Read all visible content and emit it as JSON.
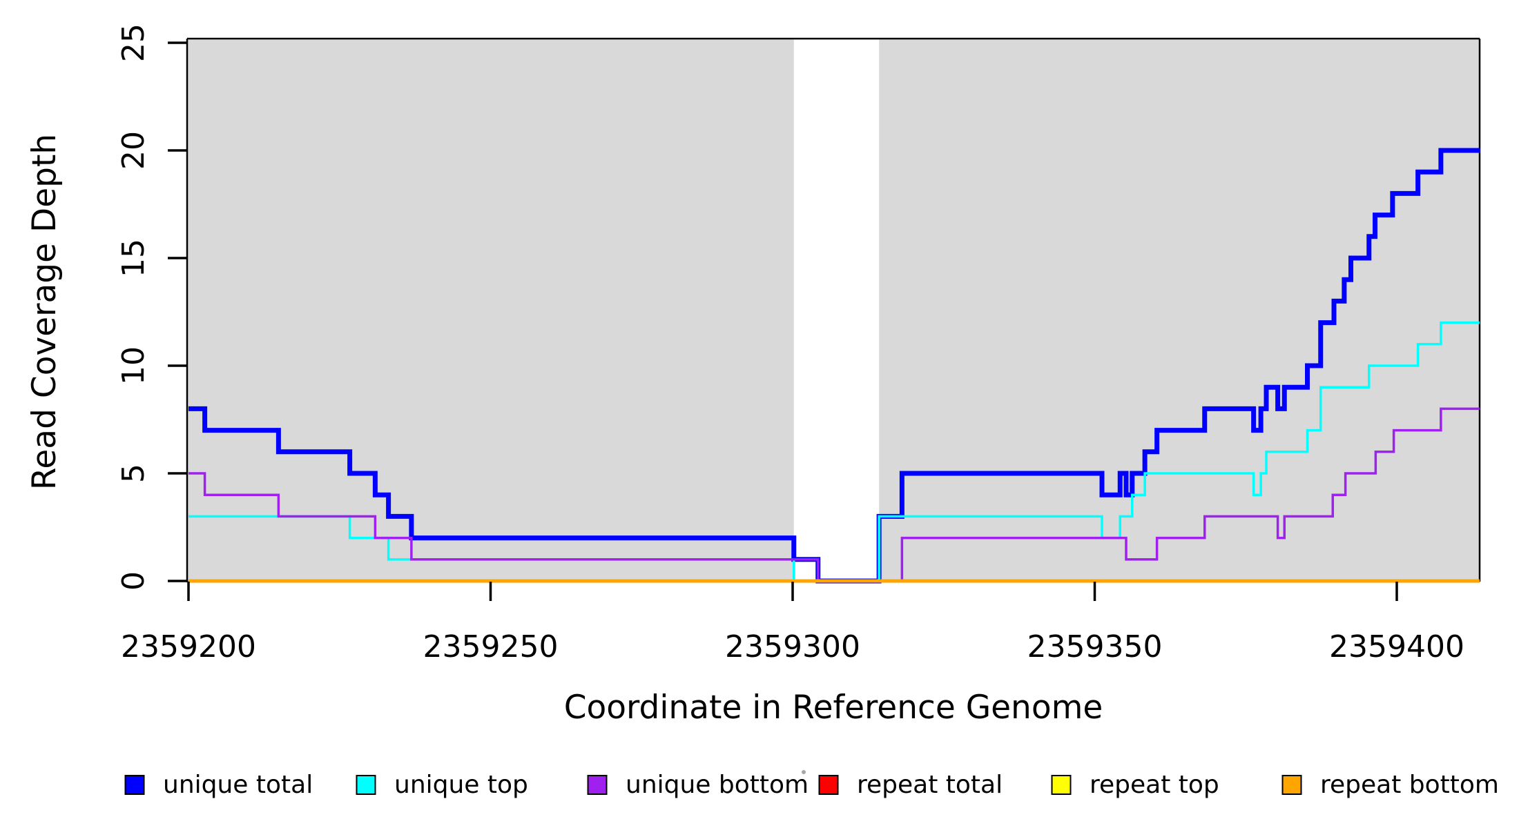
{
  "figure": {
    "background": "#FFFFFF",
    "panel_band_color": "#D9D9D9",
    "axis_color": "#000000"
  },
  "chart_data": {
    "type": "line",
    "subtype": "step-after-coverage",
    "title": "",
    "xlabel": "Coordinate in Reference Genome",
    "ylabel": "Read Coverage Depth",
    "xlim": [
      2359199.8,
      2359413.7
    ],
    "ylim": [
      0,
      25
    ],
    "grid": false,
    "legend_position": "bottom",
    "x_ticks": [
      2359200,
      2359250,
      2359300,
      2359350,
      2359400
    ],
    "x_tick_labels": [
      "2359200",
      "2359250",
      "2359300",
      "2359350",
      "2359400"
    ],
    "y_ticks": [
      0,
      5,
      10,
      15,
      20,
      25
    ],
    "y_tick_labels": [
      "0",
      "5",
      "10",
      "15",
      "20",
      "25"
    ],
    "shaded_regions": [
      {
        "name": "unique-mapping-block-left",
        "x0": 2359199.8,
        "x1": 2359300.2,
        "color": "#D9D9D9"
      },
      {
        "name": "unique-mapping-block-right",
        "x0": 2359314.3,
        "x1": 2359413.7,
        "color": "#D9D9D9"
      }
    ],
    "series_end_x": 2359413.7,
    "series": [
      {
        "name": "unique total",
        "color": "#0000FF",
        "width": 7,
        "steps": [
          [
            2359200,
            8
          ],
          [
            2359202.7,
            7
          ],
          [
            2359214.9,
            6
          ],
          [
            2359226.7,
            5
          ],
          [
            2359230.9,
            4
          ],
          [
            2359233.1,
            3
          ],
          [
            2359236.9,
            2
          ],
          [
            2359300.2,
            1
          ],
          [
            2359304.2,
            0
          ],
          [
            2359314.3,
            3
          ],
          [
            2359318.1,
            5
          ],
          [
            2359351.2,
            4
          ],
          [
            2359354.2,
            5
          ],
          [
            2359355.2,
            4
          ],
          [
            2359356.2,
            5
          ],
          [
            2359358.3,
            6
          ],
          [
            2359360.3,
            7
          ],
          [
            2359368.2,
            8
          ],
          [
            2359376.3,
            7
          ],
          [
            2359377.5,
            8
          ],
          [
            2359378.4,
            9
          ],
          [
            2359380.3,
            8
          ],
          [
            2359381.4,
            9
          ],
          [
            2359385.2,
            10
          ],
          [
            2359387.4,
            12
          ],
          [
            2359389.6,
            13
          ],
          [
            2359391.3,
            14
          ],
          [
            2359392.4,
            15
          ],
          [
            2359395.4,
            16
          ],
          [
            2359396.4,
            17
          ],
          [
            2359399.3,
            18
          ],
          [
            2359403.5,
            19
          ],
          [
            2359407.3,
            20
          ]
        ]
      },
      {
        "name": "unique top",
        "color": "#00FFFF",
        "width": 3.5,
        "steps": [
          [
            2359200,
            3
          ],
          [
            2359226.7,
            2
          ],
          [
            2359233.1,
            1
          ],
          [
            2359300.2,
            0
          ],
          [
            2359314.3,
            3
          ],
          [
            2359351.2,
            2
          ],
          [
            2359354.2,
            3
          ],
          [
            2359356.2,
            4
          ],
          [
            2359358.3,
            5
          ],
          [
            2359376.3,
            4
          ],
          [
            2359377.5,
            5
          ],
          [
            2359378.4,
            6
          ],
          [
            2359385.2,
            7
          ],
          [
            2359387.4,
            9
          ],
          [
            2359395.4,
            10
          ],
          [
            2359403.5,
            11
          ],
          [
            2359407.3,
            12
          ]
        ]
      },
      {
        "name": "unique bottom",
        "color": "#A020F0",
        "width": 3.5,
        "steps": [
          [
            2359200,
            5
          ],
          [
            2359202.7,
            4
          ],
          [
            2359214.9,
            3
          ],
          [
            2359230.9,
            2
          ],
          [
            2359236.9,
            1
          ],
          [
            2359304.2,
            0
          ],
          [
            2359318.1,
            2
          ],
          [
            2359355.2,
            1
          ],
          [
            2359360.3,
            2
          ],
          [
            2359368.2,
            3
          ],
          [
            2359380.3,
            2
          ],
          [
            2359381.4,
            3
          ],
          [
            2359389.4,
            4
          ],
          [
            2359391.5,
            5
          ],
          [
            2359396.5,
            6
          ],
          [
            2359399.5,
            7
          ],
          [
            2359407.3,
            8
          ]
        ]
      },
      {
        "name": "repeat total",
        "color": "#FF0000",
        "width": 3.5,
        "steps": [
          [
            2359200,
            0
          ]
        ]
      },
      {
        "name": "repeat top",
        "color": "#FFFF00",
        "width": 3.5,
        "steps": [
          [
            2359200,
            0
          ]
        ]
      },
      {
        "name": "repeat bottom",
        "color": "#FFA500",
        "width": 5,
        "steps": [
          [
            2359200,
            0
          ]
        ]
      }
    ]
  },
  "legend": {
    "items": [
      {
        "label": "unique total",
        "color": "#0000FF"
      },
      {
        "label": "unique top",
        "color": "#00FFFF"
      },
      {
        "label": "unique bottom",
        "color": "#A020F0"
      },
      {
        "label": "repeat total",
        "color": "#FF0000"
      },
      {
        "label": "repeat top",
        "color": "#FFFF00"
      },
      {
        "label": "repeat bottom",
        "color": "#FFA500"
      }
    ]
  }
}
